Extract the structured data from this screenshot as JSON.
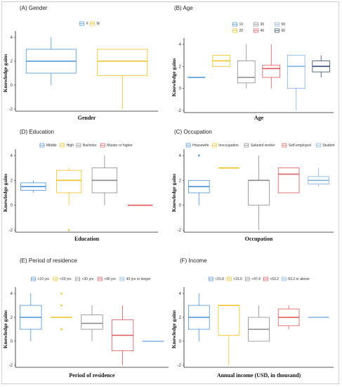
{
  "chart_data": [
    {
      "type": "boxplot",
      "title": "(A) Gender",
      "xlabel": "Gender",
      "ylabel": "Knowledge gains",
      "ylim": [
        -2,
        4
      ],
      "yticks": [
        -2,
        0,
        2,
        4
      ],
      "legend_position": "top",
      "series": [
        {
          "name": "F",
          "color": "#4a90d9",
          "min": 0,
          "q1": 1,
          "median": 2,
          "q3": 3,
          "max": 4,
          "outliers": []
        },
        {
          "name": "M",
          "color": "#f0c020",
          "min": -2,
          "q1": 0.8,
          "median": 2,
          "q3": 3,
          "max": 3,
          "outliers": []
        }
      ]
    },
    {
      "type": "boxplot",
      "title": "(B) Age",
      "xlabel": "Age",
      "ylabel": "Knowledge gains",
      "ylim": [
        -2,
        4
      ],
      "yticks": [
        -2,
        0,
        2,
        4
      ],
      "legend_position": "top",
      "series": [
        {
          "name": "10",
          "color": "#4a90d9",
          "min": 1,
          "q1": 1,
          "median": 1,
          "q3": 1,
          "max": 1,
          "outliers": []
        },
        {
          "name": "20",
          "color": "#f0c020",
          "min": 2,
          "q1": 2,
          "median": 2.5,
          "q3": 3,
          "max": 3,
          "outliers": []
        },
        {
          "name": "30",
          "color": "#8a8a8a",
          "min": 0,
          "q1": 0.5,
          "median": 1,
          "q3": 2.5,
          "max": 4,
          "outliers": []
        },
        {
          "name": "40",
          "color": "#e05555",
          "min": 0,
          "q1": 1,
          "median": 1.8,
          "q3": 2.1,
          "max": 4,
          "outliers": []
        },
        {
          "name": "50",
          "color": "#7fb0e8",
          "min": -2,
          "q1": 0,
          "median": 2,
          "q3": 3,
          "max": 3,
          "outliers": []
        },
        {
          "name": "60",
          "color": "#2c4a6e",
          "min": 1,
          "q1": 1.5,
          "median": 2,
          "q3": 2.5,
          "max": 3,
          "outliers": []
        }
      ]
    },
    {
      "type": "boxplot",
      "title": "(D) Education",
      "xlabel": "Education",
      "ylabel": "Knowledge gains",
      "ylim": [
        -2,
        4
      ],
      "yticks": [
        -2,
        0,
        2,
        4
      ],
      "legend_position": "top",
      "series": [
        {
          "name": "Middle",
          "color": "#4a90d9",
          "min": 1,
          "q1": 1.2,
          "median": 1.5,
          "q3": 1.8,
          "max": 2,
          "outliers": []
        },
        {
          "name": "High",
          "color": "#f0c020",
          "min": 0,
          "q1": 1,
          "median": 2,
          "q3": 2.8,
          "max": 3,
          "outliers": [
            -2
          ]
        },
        {
          "name": "Bachelor",
          "color": "#8a8a8a",
          "min": 0,
          "q1": 1,
          "median": 2,
          "q3": 3,
          "max": 4,
          "outliers": []
        },
        {
          "name": "Master or higher",
          "color": "#e05555",
          "min": 0,
          "q1": 0,
          "median": 0,
          "q3": 0,
          "max": 0,
          "outliers": []
        }
      ]
    },
    {
      "type": "boxplot",
      "title": "(C) Occupation",
      "xlabel": "Occupation",
      "ylabel": "Knowledge gains",
      "ylim": [
        -2,
        4
      ],
      "yticks": [
        -2,
        0,
        2,
        4
      ],
      "legend_position": "top",
      "series": [
        {
          "name": "Housewife",
          "color": "#4a90d9",
          "min": 0,
          "q1": 1,
          "median": 1.5,
          "q3": 2,
          "max": 2,
          "outliers": [
            4
          ]
        },
        {
          "name": "Inoccupation",
          "color": "#f0c020",
          "min": 3,
          "q1": 3,
          "median": 3,
          "q3": 3,
          "max": 3,
          "outliers": []
        },
        {
          "name": "Salaried worker",
          "color": "#8a8a8a",
          "min": -2,
          "q1": 0,
          "median": 2,
          "q3": 2,
          "max": 4,
          "outliers": []
        },
        {
          "name": "Self-employed",
          "color": "#e05555",
          "min": 1,
          "q1": 1,
          "median": 2.5,
          "q3": 3,
          "max": 3,
          "outliers": []
        },
        {
          "name": "Student",
          "color": "#7fb0e8",
          "min": 1.5,
          "q1": 1.7,
          "median": 2,
          "q3": 2.3,
          "max": 3,
          "outliers": []
        }
      ]
    },
    {
      "type": "boxplot",
      "title": "(E) Period of residence",
      "xlabel": "Period of residence",
      "ylabel": "Knowledge gains",
      "ylim": [
        -2,
        4
      ],
      "yticks": [
        -2,
        0,
        2,
        4
      ],
      "legend_position": "top",
      "series": [
        {
          "name": "<10 yrs",
          "color": "#4a90d9",
          "min": 0,
          "q1": 1,
          "median": 2,
          "q3": 3,
          "max": 4,
          "outliers": []
        },
        {
          "name": "<20 yrs",
          "color": "#f0c020",
          "min": 2,
          "q1": 2,
          "median": 2,
          "q3": 2,
          "max": 2,
          "outliers": [
            4,
            3,
            1
          ]
        },
        {
          "name": "<30 yrs",
          "color": "#8a8a8a",
          "min": 0,
          "q1": 1,
          "median": 1.5,
          "q3": 2.2,
          "max": 3,
          "outliers": []
        },
        {
          "name": "<40 yrs",
          "color": "#e05555",
          "min": -2,
          "q1": -0.8,
          "median": 0.5,
          "q3": 1.8,
          "max": 3,
          "outliers": []
        },
        {
          "name": "40 yrs or longer",
          "color": "#7fb0e8",
          "min": 0,
          "q1": 0,
          "median": 0,
          "q3": 0,
          "max": 0,
          "outliers": []
        }
      ]
    },
    {
      "type": "boxplot",
      "title": "(F) Income",
      "xlabel": "Annual income (USD, in thousand)",
      "ylabel": "Knowledge gains",
      "ylim": [
        -2,
        4
      ],
      "yticks": [
        -2,
        0,
        2,
        4
      ],
      "legend_position": "top",
      "series": [
        {
          "name": "<15.8",
          "color": "#4a90d9",
          "min": 0,
          "q1": 1,
          "median": 2,
          "q3": 3,
          "max": 4,
          "outliers": []
        },
        {
          "name": "<31.6",
          "color": "#f0c020",
          "min": -2,
          "q1": 0.5,
          "median": 3,
          "q3": 3,
          "max": 3,
          "outliers": []
        },
        {
          "name": "<47.4",
          "color": "#8a8a8a",
          "min": 0,
          "q1": 0,
          "median": 1,
          "q3": 2,
          "max": 3,
          "outliers": []
        },
        {
          "name": "<63.2",
          "color": "#e05555",
          "min": 1,
          "q1": 1.3,
          "median": 2,
          "q3": 2.7,
          "max": 3,
          "outliers": []
        },
        {
          "name": "63.2 or above",
          "color": "#7fb0e8",
          "min": 2,
          "q1": 2,
          "median": 2,
          "q3": 2,
          "max": 2,
          "outliers": []
        }
      ]
    }
  ]
}
